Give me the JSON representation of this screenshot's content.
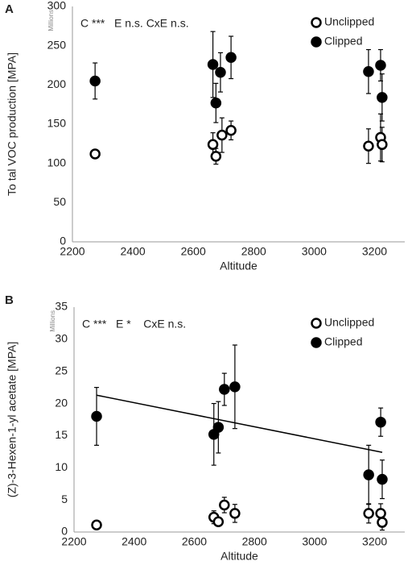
{
  "chart_data": [
    {
      "type": "scatter",
      "panel_label": "A",
      "annotation": "C ***   E n.s. CxE n.s.",
      "x_label": "Altitude",
      "y_label": "To tal VOC production [MPA]",
      "y_unit": "Millions",
      "xlim": [
        2200,
        3300
      ],
      "xticks": [
        2200,
        2400,
        2600,
        2800,
        3000,
        3200
      ],
      "ylim": [
        0,
        300
      ],
      "yticks": [
        0,
        50,
        100,
        150,
        200,
        250,
        300
      ],
      "legend": "upper right",
      "series": [
        {
          "name": "Unclipped",
          "color": "#000000",
          "fill": "#ffffff",
          "x": [
            2275,
            2665,
            2675,
            2695,
            2725,
            3180,
            3220,
            3225
          ],
          "values": [
            112,
            124,
            109,
            136,
            142,
            122,
            133,
            124
          ],
          "errors": [
            null,
            15,
            10,
            22,
            12,
            22,
            30,
            22
          ]
        },
        {
          "name": "Clipped",
          "color": "#000000",
          "fill": "#000000",
          "x": [
            2275,
            2665,
            2675,
            2690,
            2725,
            3180,
            3220,
            3225
          ],
          "values": [
            205,
            226,
            177,
            216,
            235,
            217,
            225,
            184
          ],
          "errors": [
            23,
            42,
            25,
            25,
            27,
            28,
            20,
            30
          ]
        }
      ]
    },
    {
      "type": "scatter",
      "panel_label": "B",
      "annotation": "C ***   E *    CxE n.s.",
      "x_label": "Altitude",
      "y_label": "(Z)-3-Hexen-1-yl acetate [MPA]",
      "y_unit": "Millions",
      "xlim": [
        2200,
        3300
      ],
      "xticks": [
        2200,
        2400,
        2600,
        2800,
        3000,
        3200
      ],
      "ylim": [
        0,
        35
      ],
      "yticks": [
        0,
        5,
        10,
        15,
        20,
        25,
        30,
        35
      ],
      "legend": "upper right",
      "series": [
        {
          "name": "Unclipped",
          "color": "#000000",
          "fill": "#ffffff",
          "x": [
            2275,
            2665,
            2680,
            2700,
            2735,
            3180,
            3220,
            3225
          ],
          "values": [
            1.1,
            2.3,
            1.6,
            4.2,
            2.9,
            2.9,
            2.9,
            1.5
          ],
          "errors": [
            null,
            1.0,
            0.5,
            1.2,
            1.4,
            1.5,
            1.5,
            1.2
          ]
        },
        {
          "name": "Clipped",
          "color": "#000000",
          "fill": "#000000",
          "x": [
            2275,
            2665,
            2680,
            2700,
            2735,
            3180,
            3220,
            3225
          ],
          "values": [
            18,
            15.2,
            16.3,
            22.2,
            22.6,
            8.9,
            17.1,
            8.2
          ],
          "errors": [
            4.5,
            4.8,
            4.0,
            2.5,
            6.5,
            4.6,
            2.2,
            3.0
          ]
        }
      ],
      "trendline": {
        "color": "#000000",
        "x": [
          2275,
          3225
        ],
        "values": [
          21.3,
          12.4
        ]
      }
    }
  ]
}
